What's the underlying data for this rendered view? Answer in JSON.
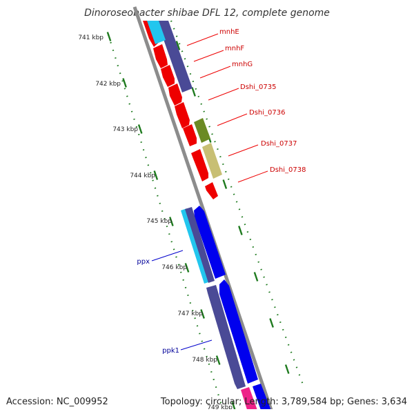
{
  "title": "Dinoroseobacter shibae DFL 12, complete genome",
  "footer": {
    "accession": "Accession: NC_009952",
    "stats": "Topology: circular; Length: 3,789,584 bp; Genes: 3,634"
  },
  "colors": {
    "backbone": "#8c8c8c",
    "tick": "#1e7a1e",
    "red_gene": "#ee0000",
    "red_label": "#cc0000",
    "blue_gene": "#0000ee",
    "blue_label": "#000099",
    "slate_gene": "#4a4a96",
    "cyan_gene": "#22c6ee",
    "olive_gene": "#6b8a24",
    "khaki_gene": "#c8bf74",
    "magenta_gene": "#ee2288"
  },
  "ticks": [
    {
      "label": "741 kbp"
    },
    {
      "label": "742 kbp"
    },
    {
      "label": "743 kbp"
    },
    {
      "label": "744 kbp"
    },
    {
      "label": "745 kbp"
    },
    {
      "label": "746 kbp"
    },
    {
      "label": "747 kbp"
    },
    {
      "label": "748 kbp"
    },
    {
      "label": "749 kbp"
    }
  ],
  "gene_labels": [
    {
      "name": "mnhE",
      "color": "red"
    },
    {
      "name": "mnhF",
      "color": "red"
    },
    {
      "name": "mnhG",
      "color": "red"
    },
    {
      "name": "Dshi_0735",
      "color": "red"
    },
    {
      "name": "Dshi_0736",
      "color": "red"
    },
    {
      "name": "Dshi_0737",
      "color": "red"
    },
    {
      "name": "Dshi_0738",
      "color": "red"
    },
    {
      "name": "ppx",
      "color": "blue"
    },
    {
      "name": "ppk1",
      "color": "blue"
    }
  ]
}
